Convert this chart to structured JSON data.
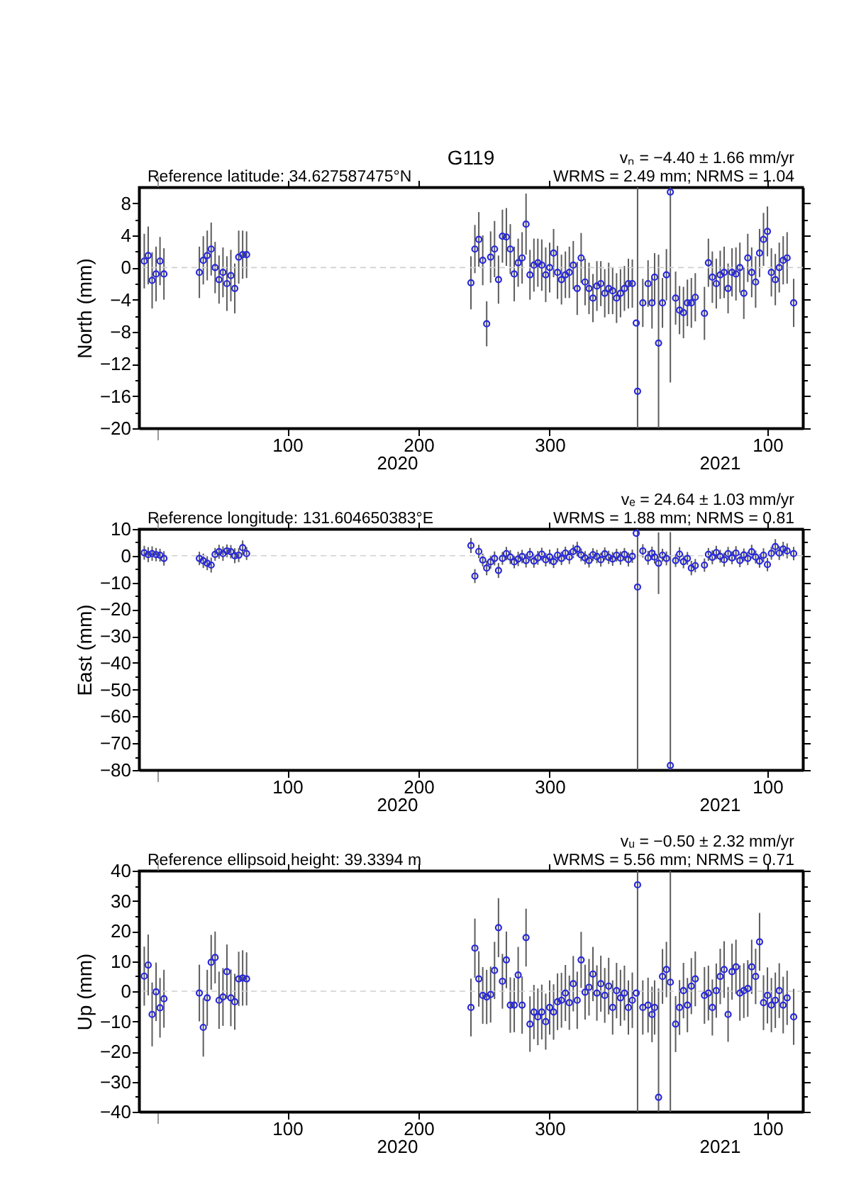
{
  "chart_data": [
    {
      "type": "scatter",
      "title": "G119",
      "ylabel": "North (mm)",
      "annotations": [
        "vₙ = −4.40 ± 1.66 mm/yr",
        "Reference latitude: 34.627587475°N",
        "WRMS = 2.49 mm; NRMS = 1.04",
        "2020",
        "2021"
      ],
      "color": "#2828dc",
      "marker": "circle",
      "grid": false,
      "xlim": [
        "2019-12-18",
        "2021-05-07"
      ],
      "xticks": [
        {
          "value": "2020-01-01",
          "label": null
        },
        {
          "value": "2020-04-09",
          "label": "100"
        },
        {
          "value": "2020-07-18",
          "label": "200"
        },
        {
          "value": "2020-10-26",
          "label": "300"
        },
        {
          "value": "2021-04-10",
          "label": "100"
        }
      ],
      "ylim": [
        -20,
        10
      ],
      "yticks": [
        -20,
        {
          "value": -18,
          "label": null
        },
        -16,
        {
          "value": -14,
          "label": null
        },
        -12,
        {
          "value": -10,
          "label": null
        },
        -8,
        {
          "value": -6,
          "label": null
        },
        -4,
        {
          "value": -2,
          "label": null
        },
        0,
        {
          "value": 2,
          "label": null
        },
        4,
        {
          "value": 6,
          "label": null
        },
        8
      ],
      "ref_lines": [
        {
          "axis": "y",
          "value": 0,
          "color": "#d0d0d0",
          "line_style": "dashed"
        }
      ],
      "x": [
        "2019-12-22",
        "2019-12-25",
        "2019-12-28",
        "2019-12-31",
        "2020-01-03",
        "2020-01-06",
        "2020-02-02",
        "2020-02-05",
        "2020-02-08",
        "2020-02-11",
        "2020-02-14",
        "2020-02-17",
        "2020-02-20",
        "2020-02-23",
        "2020-02-26",
        "2020-02-29",
        "2020-03-03",
        "2020-03-06",
        "2020-03-09",
        "2020-08-27",
        "2020-08-30",
        "2020-09-02",
        "2020-09-05",
        "2020-09-08",
        "2020-09-11",
        "2020-09-14",
        "2020-09-17",
        "2020-09-20",
        "2020-09-23",
        "2020-09-26",
        "2020-09-29",
        "2020-10-02",
        "2020-10-05",
        "2020-10-08",
        "2020-10-11",
        "2020-10-14",
        "2020-10-17",
        "2020-10-20",
        "2020-10-23",
        "2020-10-26",
        "2020-10-29",
        "2020-11-01",
        "2020-11-04",
        "2020-11-07",
        "2020-11-10",
        "2020-11-13",
        "2020-11-16",
        "2020-11-19",
        "2020-11-22",
        "2020-11-25",
        "2020-11-28",
        "2020-12-01",
        "2020-12-04",
        "2020-12-07",
        "2020-12-10",
        "2020-12-13",
        "2020-12-16",
        "2020-12-19",
        "2020-12-22",
        "2020-12-25",
        "2020-12-28",
        "2020-12-31",
        "2021-01-01",
        "2021-01-05",
        "2021-01-09",
        "2021-01-12",
        "2021-01-14",
        "2021-01-17",
        "2021-01-20",
        "2021-01-23",
        "2021-01-26",
        "2021-01-30",
        "2021-02-02",
        "2021-02-05",
        "2021-02-08",
        "2021-02-11",
        "2021-02-14",
        "2021-02-21",
        "2021-02-24",
        "2021-02-27",
        "2021-03-02",
        "2021-03-05",
        "2021-03-08",
        "2021-03-11",
        "2021-03-14",
        "2021-03-17",
        "2021-03-20",
        "2021-03-23",
        "2021-03-26",
        "2021-03-29",
        "2021-04-01",
        "2021-04-04",
        "2021-04-07",
        "2021-04-10",
        "2021-04-13",
        "2021-04-16",
        "2021-04-19",
        "2021-04-22",
        "2021-04-25",
        "2021-04-30"
      ],
      "values": [
        0.8,
        1.5,
        -1.6,
        -0.8,
        0.8,
        -0.8,
        -0.6,
        0.9,
        1.5,
        2.3,
        0.0,
        -1.5,
        -0.6,
        -2.0,
        -1.0,
        -2.6,
        1.3,
        1.6,
        1.6,
        -1.9,
        2.3,
        3.5,
        0.9,
        -7.0,
        1.3,
        2.3,
        -1.5,
        3.9,
        3.8,
        2.3,
        -0.8,
        0.6,
        1.2,
        5.4,
        -0.9,
        0.3,
        0.6,
        0.3,
        -0.9,
        0.0,
        1.8,
        -0.6,
        -1.5,
        -0.9,
        -0.6,
        0.3,
        -2.6,
        1.2,
        -1.8,
        -2.6,
        -3.8,
        -2.3,
        -2.0,
        -3.2,
        -2.6,
        -2.9,
        -3.8,
        -3.2,
        -2.6,
        -2.0,
        -2.0,
        -6.9,
        -15.4,
        -4.4,
        -2.0,
        -4.4,
        -1.2,
        -9.4,
        -4.4,
        -0.9,
        9.4,
        -3.8,
        -5.3,
        -5.6,
        -4.4,
        -4.4,
        -3.7,
        -5.7,
        0.6,
        -1.2,
        -2.0,
        -0.9,
        -0.6,
        -2.6,
        -0.6,
        -0.8,
        0.0,
        -3.2,
        1.2,
        -0.6,
        -1.8,
        1.8,
        3.5,
        4.5,
        -0.6,
        -1.5,
        0.0,
        0.9,
        1.2,
        -4.4
      ],
      "errors": [
        3.4,
        3.6,
        3.5,
        3.4,
        3.0,
        3.2,
        3.2,
        3.0,
        3.1,
        3.3,
        3.2,
        3.0,
        3.1,
        3.4,
        3.2,
        3.1,
        3.3,
        3.0,
        2.9,
        3.3,
        3.0,
        3.4,
        3.1,
        2.8,
        3.2,
        3.5,
        3.0,
        3.3,
        3.6,
        3.1,
        3.4,
        3.0,
        3.2,
        3.8,
        3.1,
        3.3,
        3.0,
        3.2,
        3.4,
        3.1,
        3.0,
        3.3,
        3.1,
        2.9,
        3.2,
        3.0,
        3.3,
        3.1,
        2.9,
        3.2,
        3.0,
        3.1,
        2.8,
        3.0,
        3.2,
        2.9,
        3.1,
        3.0,
        2.8,
        3.1,
        3.0,
        null,
        [
          -20,
          10
        ],
        3.0,
        2.9,
        3.2,
        3.0,
        [
          -20,
          1.6
        ],
        3.1,
        3.2,
        [
          -14.3,
          10
        ],
        3.3,
        3.0,
        3.2,
        2.9,
        3.1,
        3.0,
        3.3,
        3.0,
        3.2,
        3.1,
        3.0,
        3.2,
        3.1,
        3.0,
        3.3,
        3.1,
        3.2,
        3.0,
        3.1,
        3.2,
        3.0,
        3.3,
        3.1,
        3.0,
        3.2,
        3.1,
        3.0,
        3.2,
        3.0
      ]
    },
    {
      "type": "scatter",
      "ylabel": "East (mm)",
      "annotations": [
        "vₑ = 24.64 ± 1.03 mm/yr",
        "Reference longitude: 131.604650383°E",
        "WRMS = 1.88 mm; NRMS = 0.81",
        "2020",
        "2021"
      ],
      "color": "#2828dc",
      "marker": "circle",
      "grid": false,
      "xlim": [
        "2019-12-18",
        "2021-05-07"
      ],
      "xticks": [
        {
          "value": "2020-01-01",
          "label": null
        },
        {
          "value": "2020-04-09",
          "label": "100"
        },
        {
          "value": "2020-07-18",
          "label": "200"
        },
        {
          "value": "2020-10-26",
          "label": "300"
        },
        {
          "value": "2021-04-10",
          "label": "100"
        }
      ],
      "ylim": [
        -80,
        10
      ],
      "yticks": [
        -80,
        {
          "value": -75,
          "label": null
        },
        -70,
        {
          "value": -65,
          "label": null
        },
        -60,
        {
          "value": -55,
          "label": null
        },
        -50,
        {
          "value": -45,
          "label": null
        },
        -40,
        {
          "value": -35,
          "label": null
        },
        -30,
        {
          "value": -25,
          "label": null
        },
        -20,
        {
          "value": -15,
          "label": null
        },
        -10,
        {
          "value": -5,
          "label": null
        },
        0,
        {
          "value": 5,
          "label": null
        },
        10
      ],
      "ref_lines": [
        {
          "axis": "y",
          "value": 0,
          "color": "#d0d0d0",
          "line_style": "dashed"
        }
      ],
      "x": [
        "2019-12-22",
        "2019-12-25",
        "2019-12-28",
        "2019-12-31",
        "2020-01-03",
        "2020-01-06",
        "2020-02-02",
        "2020-02-05",
        "2020-02-08",
        "2020-02-11",
        "2020-02-14",
        "2020-02-17",
        "2020-02-20",
        "2020-02-23",
        "2020-02-26",
        "2020-02-29",
        "2020-03-03",
        "2020-03-06",
        "2020-03-09",
        "2020-08-27",
        "2020-08-30",
        "2020-09-02",
        "2020-09-05",
        "2020-09-08",
        "2020-09-11",
        "2020-09-14",
        "2020-09-17",
        "2020-09-20",
        "2020-09-23",
        "2020-09-26",
        "2020-09-29",
        "2020-10-02",
        "2020-10-05",
        "2020-10-08",
        "2020-10-11",
        "2020-10-14",
        "2020-10-17",
        "2020-10-20",
        "2020-10-23",
        "2020-10-26",
        "2020-10-29",
        "2020-11-01",
        "2020-11-04",
        "2020-11-07",
        "2020-11-10",
        "2020-11-13",
        "2020-11-16",
        "2020-11-19",
        "2020-11-22",
        "2020-11-25",
        "2020-11-28",
        "2020-12-01",
        "2020-12-04",
        "2020-12-07",
        "2020-12-10",
        "2020-12-13",
        "2020-12-16",
        "2020-12-19",
        "2020-12-22",
        "2020-12-25",
        "2020-12-28",
        "2020-12-31",
        "2021-01-01",
        "2021-01-05",
        "2021-01-09",
        "2021-01-12",
        "2021-01-14",
        "2021-01-17",
        "2021-01-20",
        "2021-01-23",
        "2021-01-26",
        "2021-01-30",
        "2021-02-02",
        "2021-02-05",
        "2021-02-08",
        "2021-02-11",
        "2021-02-14",
        "2021-02-21",
        "2021-02-24",
        "2021-02-27",
        "2021-03-02",
        "2021-03-05",
        "2021-03-08",
        "2021-03-11",
        "2021-03-14",
        "2021-03-17",
        "2021-03-20",
        "2021-03-23",
        "2021-03-26",
        "2021-03-29",
        "2021-04-01",
        "2021-04-04",
        "2021-04-07",
        "2021-04-10",
        "2021-04-13",
        "2021-04-16",
        "2021-04-19",
        "2021-04-22",
        "2021-04-25",
        "2021-04-30"
      ],
      "values": [
        1.1,
        0.4,
        0.8,
        0.4,
        0.2,
        -1.0,
        -1.0,
        -1.9,
        -2.8,
        -3.5,
        0.5,
        1.5,
        0.8,
        1.8,
        1.5,
        0.0,
        0.2,
        3.0,
        0.8,
        3.8,
        -7.6,
        1.6,
        -1.6,
        -4.6,
        -2.3,
        -1.0,
        -5.5,
        -1.0,
        0.8,
        -0.5,
        -2.3,
        -1.2,
        -0.3,
        -1.8,
        0.5,
        -2.0,
        -0.8,
        0.6,
        -1.5,
        -0.4,
        -2.2,
        0.2,
        -1.0,
        1.0,
        -0.5,
        1.6,
        2.5,
        0.3,
        -0.8,
        -1.8,
        0.4,
        -0.3,
        -1.5,
        0.7,
        -0.6,
        -1.2,
        0.2,
        -0.9,
        0.5,
        -1.4,
        -0.2,
        8.4,
        -11.7,
        1.8,
        -0.8,
        0.9,
        -0.5,
        -2.8,
        0.2,
        -1.0,
        -78.3,
        -1.8,
        0.6,
        -2.2,
        -1.0,
        -4.6,
        -3.7,
        -3.5,
        0.5,
        -0.6,
        1.2,
        -0.2,
        -1.5,
        0.8,
        -0.8,
        1.0,
        -1.8,
        0.3,
        -1.0,
        1.5,
        -0.5,
        -2.0,
        0.2,
        -3.3,
        0.9,
        3.4,
        1.0,
        2.5,
        1.8,
        0.8
      ],
      "errors": [
        2.6,
        2.8,
        2.7,
        2.5,
        2.4,
        2.7,
        2.5,
        2.7,
        2.6,
        2.8,
        2.4,
        2.6,
        2.7,
        2.4,
        2.5,
        2.8,
        2.6,
        2.7,
        2.4,
        2.8,
        2.6,
        2.5,
        2.4,
        2.7,
        2.5,
        2.6,
        2.8,
        2.4,
        2.5,
        2.6,
        2.4,
        2.7,
        2.5,
        2.6,
        2.4,
        2.5,
        2.6,
        2.4,
        2.5,
        2.7,
        2.4,
        2.6,
        2.5,
        2.4,
        2.6,
        2.5,
        2.7,
        2.4,
        2.5,
        2.6,
        2.4,
        2.5,
        2.6,
        2.4,
        2.5,
        2.6,
        2.4,
        2.5,
        2.4,
        2.6,
        2.5,
        null,
        [
          -80,
          10
        ],
        2.5,
        2.6,
        2.5,
        2.4,
        11.5,
        2.4,
        2.6,
        [
          -80,
          8.8
        ],
        2.4,
        2.6,
        2.5,
        2.4,
        2.7,
        2.5,
        2.5,
        2.4,
        2.6,
        2.5,
        2.4,
        2.6,
        2.5,
        2.4,
        2.6,
        2.5,
        2.4,
        2.5,
        2.6,
        2.4,
        2.5,
        2.6,
        2.5,
        2.4,
        2.8,
        2.6,
        2.7,
        2.8,
        2.5
      ]
    },
    {
      "type": "scatter",
      "ylabel": "Up (mm)",
      "annotations": [
        "vᵤ = −0.50 ± 2.32 mm/yr",
        "Reference ellipsoid height: 39.3394 m",
        "WRMS = 5.56 mm; NRMS = 0.71",
        "2020",
        "2021"
      ],
      "color": "#2828dc",
      "marker": "circle",
      "grid": false,
      "xlim": [
        "2019-12-18",
        "2021-05-07"
      ],
      "xticks": [
        {
          "value": "2020-01-01",
          "label": null
        },
        {
          "value": "2020-04-09",
          "label": "100"
        },
        {
          "value": "2020-07-18",
          "label": "200"
        },
        {
          "value": "2020-10-26",
          "label": "300"
        },
        {
          "value": "2021-04-10",
          "label": "100"
        }
      ],
      "ylim": [
        -40,
        40
      ],
      "yticks": [
        -40,
        {
          "value": -35,
          "label": null
        },
        -30,
        {
          "value": -25,
          "label": null
        },
        -20,
        {
          "value": -15,
          "label": null
        },
        -10,
        {
          "value": -5,
          "label": null
        },
        0,
        {
          "value": 5,
          "label": null
        },
        10,
        {
          "value": 15,
          "label": null
        },
        20,
        {
          "value": 25,
          "label": null
        },
        30,
        {
          "value": 35,
          "label": null
        },
        40
      ],
      "ref_lines": [
        {
          "axis": "y",
          "value": 0,
          "color": "#d0d0d0",
          "line_style": "dashed"
        }
      ],
      "x": [
        "2019-12-22",
        "2019-12-25",
        "2019-12-28",
        "2019-12-31",
        "2020-01-03",
        "2020-01-06",
        "2020-02-02",
        "2020-02-05",
        "2020-02-08",
        "2020-02-11",
        "2020-02-14",
        "2020-02-17",
        "2020-02-20",
        "2020-02-23",
        "2020-02-26",
        "2020-02-29",
        "2020-03-03",
        "2020-03-06",
        "2020-03-09",
        "2020-08-27",
        "2020-08-30",
        "2020-09-02",
        "2020-09-05",
        "2020-09-08",
        "2020-09-11",
        "2020-09-14",
        "2020-09-17",
        "2020-09-20",
        "2020-09-23",
        "2020-09-26",
        "2020-09-29",
        "2020-10-02",
        "2020-10-05",
        "2020-10-08",
        "2020-10-11",
        "2020-10-14",
        "2020-10-17",
        "2020-10-20",
        "2020-10-23",
        "2020-10-26",
        "2020-10-29",
        "2020-11-01",
        "2020-11-04",
        "2020-11-07",
        "2020-11-10",
        "2020-11-13",
        "2020-11-16",
        "2020-11-19",
        "2020-11-22",
        "2020-11-25",
        "2020-11-28",
        "2020-12-01",
        "2020-12-04",
        "2020-12-07",
        "2020-12-10",
        "2020-12-13",
        "2020-12-16",
        "2020-12-19",
        "2020-12-22",
        "2020-12-25",
        "2020-12-28",
        "2020-12-31",
        "2021-01-01",
        "2021-01-05",
        "2021-01-09",
        "2021-01-12",
        "2021-01-14",
        "2021-01-17",
        "2021-01-20",
        "2021-01-23",
        "2021-01-26",
        "2021-01-30",
        "2021-02-02",
        "2021-02-05",
        "2021-02-08",
        "2021-02-11",
        "2021-02-14",
        "2021-02-21",
        "2021-02-24",
        "2021-02-27",
        "2021-03-02",
        "2021-03-05",
        "2021-03-08",
        "2021-03-11",
        "2021-03-14",
        "2021-03-17",
        "2021-03-20",
        "2021-03-23",
        "2021-03-26",
        "2021-03-29",
        "2021-04-01",
        "2021-04-04",
        "2021-04-07",
        "2021-04-10",
        "2021-04-13",
        "2021-04-16",
        "2021-04-19",
        "2021-04-22",
        "2021-04-25",
        "2021-04-30"
      ],
      "values": [
        5.0,
        8.7,
        -7.7,
        -0.2,
        -5.5,
        -2.5,
        -0.6,
        -12.0,
        -2.2,
        9.6,
        11.2,
        -3.0,
        -1.9,
        6.5,
        -2.2,
        -3.5,
        4.1,
        4.4,
        4.1,
        -5.4,
        14.3,
        4.1,
        -1.4,
        -1.9,
        -1.1,
        6.9,
        21.1,
        3.3,
        10.4,
        -4.6,
        -4.6,
        5.4,
        -4.6,
        17.8,
        -10.9,
        -6.9,
        -8.5,
        -6.9,
        -10.1,
        -5.4,
        -6.9,
        -3.5,
        -3.0,
        -0.6,
        -3.8,
        2.5,
        -3.0,
        10.4,
        -0.3,
        1.3,
        5.7,
        -0.6,
        2.5,
        -1.4,
        1.7,
        -5.4,
        0.2,
        -2.2,
        -0.6,
        -5.4,
        -3.0,
        -0.6,
        35.3,
        -5.4,
        -4.6,
        -7.7,
        -5.4,
        -35.2,
        4.9,
        7.2,
        3.0,
        -10.9,
        -5.4,
        0.2,
        -4.6,
        1.7,
        4.1,
        -1.4,
        -0.6,
        -5.4,
        0.2,
        4.9,
        7.2,
        -7.7,
        6.5,
        8.1,
        -0.6,
        0.2,
        0.9,
        8.1,
        4.9,
        16.4,
        -3.8,
        -1.4,
        -4.6,
        -3.0,
        0.2,
        -4.6,
        -2.2,
        -8.5
      ],
      "errors": [
        9.8,
        10.1,
        10.6,
        9.7,
        9.9,
        9.6,
        9.4,
        9.7,
        9.3,
        9.1,
        8.6,
        9.5,
        9.6,
        9.0,
        9.4,
        9.3,
        9.0,
        9.2,
        8.8,
        9.6,
        9.8,
        9.2,
        9.4,
        9.0,
        9.3,
        9.5,
        9.8,
        9.1,
        9.4,
        9.2,
        9.0,
        9.3,
        9.5,
        9.6,
        9.2,
        9.0,
        9.4,
        9.1,
        9.3,
        9.0,
        9.2,
        9.4,
        9.1,
        9.3,
        9.0,
        9.2,
        9.5,
        9.3,
        9.1,
        9.4,
        9.0,
        9.2,
        9.3,
        9.1,
        9.4,
        9.0,
        9.2,
        9.3,
        9.1,
        9.0,
        9.2,
        null,
        [
          -40,
          40
        ],
        9.0,
        9.1,
        9.2,
        9.0,
        [
          -40,
          0.9
        ],
        9.1,
        9.2,
        [
          -40,
          40
        ],
        9.3,
        9.1,
        9.2,
        9.0,
        9.3,
        9.1,
        9.4,
        9.1,
        9.3,
        9.0,
        9.2,
        9.4,
        9.1,
        9.3,
        9.0,
        9.2,
        9.1,
        9.4,
        9.0,
        9.2,
        9.6,
        9.1,
        9.3,
        9.0,
        9.2,
        9.1,
        9.4,
        9.0,
        9.3
      ]
    }
  ]
}
